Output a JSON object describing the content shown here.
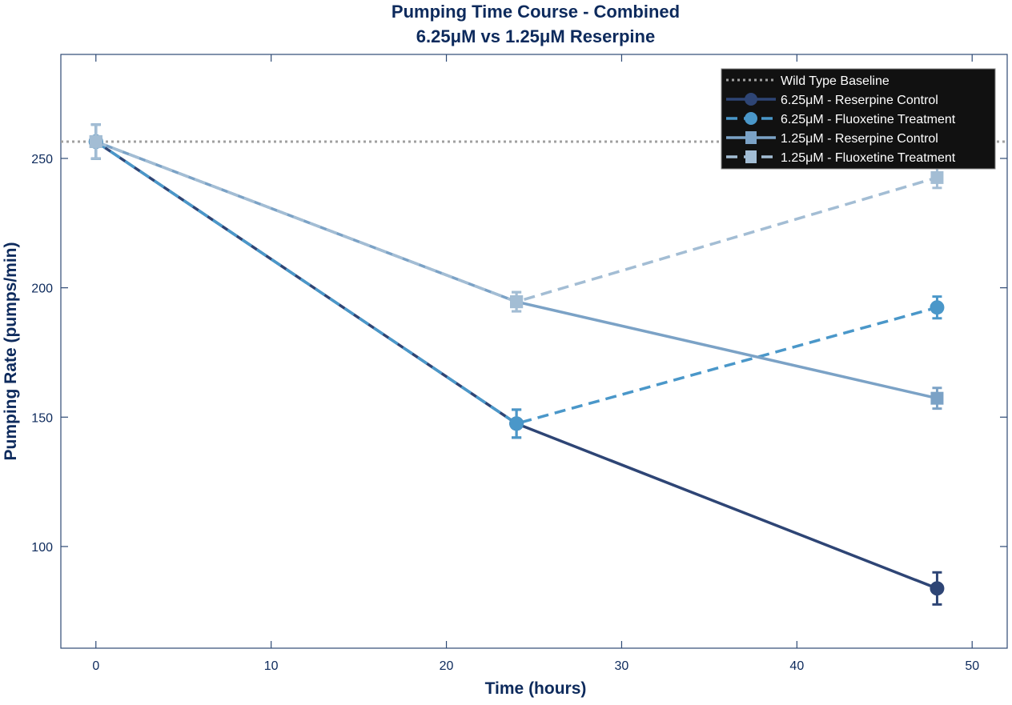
{
  "chart_data": {
    "type": "line",
    "title": "Pumping Time Course - Combined",
    "subtitle": "6.25μM vs 1.25μM Reserpine",
    "xlabel": "Time (hours)",
    "ylabel": "Pumping Rate (pumps/min)",
    "xlim": [
      -2,
      52
    ],
    "ylim": [
      60.7,
      290.2
    ],
    "xticks": [
      0,
      10,
      20,
      30,
      40,
      50
    ],
    "yticks": [
      100,
      150,
      200,
      250
    ],
    "grid": false,
    "legend_placement": "top-right",
    "baseline": {
      "name": "Wild Type Baseline",
      "value": 256.5,
      "color": "#a0a0a0",
      "style": "dotted"
    },
    "series": [
      {
        "name": "6.25μM - Reserpine Control",
        "x": [
          0,
          24,
          48
        ],
        "y": [
          256.5,
          147.5,
          83.8
        ],
        "err": [
          6.6,
          5.4,
          6.2
        ],
        "color": "#2e4575",
        "dash": false,
        "marker": "circle"
      },
      {
        "name": "6.25μM - Fluoxetine Treatment",
        "x": [
          0,
          24,
          48
        ],
        "y": [
          256.5,
          147.5,
          192.4
        ],
        "err": [
          6.6,
          5.4,
          4.2
        ],
        "color": "#4a97c9",
        "dash": true,
        "marker": "circle"
      },
      {
        "name": "1.25μM - Reserpine Control",
        "x": [
          0,
          24,
          48
        ],
        "y": [
          256.5,
          194.6,
          157.3
        ],
        "err": [
          6.6,
          3.7,
          4.0
        ],
        "color": "#7ba2c6",
        "dash": false,
        "marker": "square"
      },
      {
        "name": "1.25μM - Fluoxetine Treatment",
        "x": [
          0,
          24,
          48
        ],
        "y": [
          256.5,
          194.6,
          242.6
        ],
        "err": [
          6.6,
          3.7,
          4.0
        ],
        "color": "#a3bdd4",
        "dash": true,
        "marker": "square"
      }
    ],
    "colors": {
      "text": "#0d2a5c",
      "axis": "#2e4a75",
      "legend_bg": "#111111",
      "legend_text": "#ffffff"
    }
  }
}
